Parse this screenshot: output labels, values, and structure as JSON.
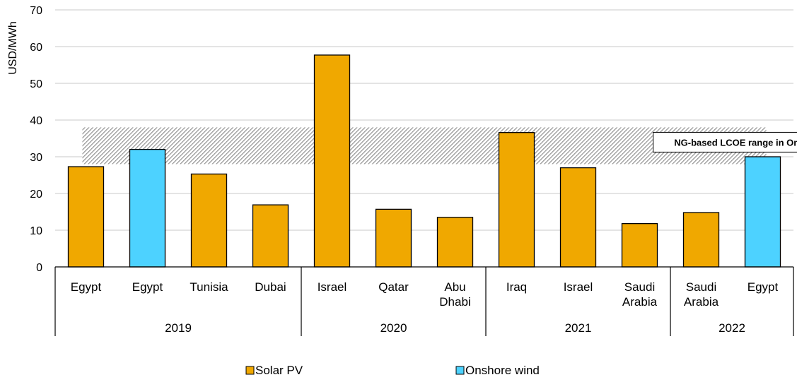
{
  "chart_data": {
    "type": "bar",
    "ylabel": "USD/MWh",
    "ylim": [
      0,
      70
    ],
    "yticks": [
      0,
      10,
      20,
      30,
      40,
      50,
      60,
      70
    ],
    "grid": true,
    "legend_position": "bottom",
    "series": [
      {
        "name": "Solar PV",
        "color": "#F0A800"
      },
      {
        "name": "Onshore wind",
        "color": "#4DD2FF"
      }
    ],
    "bars": [
      {
        "label": [
          "Egypt"
        ],
        "group": "2019",
        "value": 27.3,
        "series": 0
      },
      {
        "label": [
          "Egypt"
        ],
        "group": "2019",
        "value": 32.0,
        "series": 1
      },
      {
        "label": [
          "Tunisia"
        ],
        "group": "2019",
        "value": 25.3,
        "series": 0
      },
      {
        "label": [
          "Dubai"
        ],
        "group": "2019",
        "value": 16.9,
        "series": 0
      },
      {
        "label": [
          "Israel"
        ],
        "group": "2020",
        "value": 57.7,
        "series": 0
      },
      {
        "label": [
          "Qatar"
        ],
        "group": "2020",
        "value": 15.7,
        "series": 0
      },
      {
        "label": [
          "Abu",
          "Dhabi"
        ],
        "group": "2020",
        "value": 13.5,
        "series": 0
      },
      {
        "label": [
          "Iraq"
        ],
        "group": "2021",
        "value": 36.6,
        "series": 0
      },
      {
        "label": [
          "Israel"
        ],
        "group": "2021",
        "value": 27.0,
        "series": 0
      },
      {
        "label": [
          "Saudi",
          "Arabia"
        ],
        "group": "2021",
        "value": 11.8,
        "series": 0
      },
      {
        "label": [
          "Saudi",
          "Arabia"
        ],
        "group": "2022",
        "value": 14.8,
        "series": 0
      },
      {
        "label": [
          "Egypt"
        ],
        "group": "2022",
        "value": 30.0,
        "series": 1
      }
    ],
    "groups": [
      {
        "name": "2019",
        "count": 4
      },
      {
        "name": "2020",
        "count": 3
      },
      {
        "name": "2021",
        "count": 3
      },
      {
        "name": "2022",
        "count": 2
      }
    ],
    "band": {
      "label": "NG-based LCOE range in Oman",
      "low": 28,
      "high": 38,
      "pattern": "diagonal-hatch",
      "color": "#9a9a9a"
    }
  }
}
